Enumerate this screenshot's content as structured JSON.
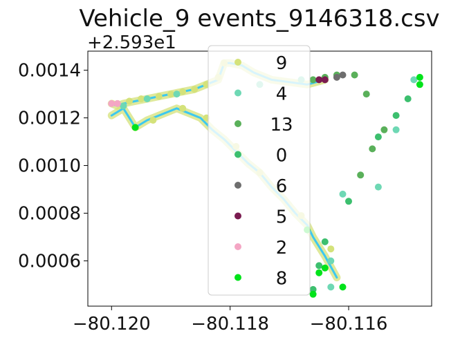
{
  "chart_data": {
    "type": "scatter",
    "title": "Vehicle_9 events_9146318.csv",
    "xlabel": "",
    "ylabel": "",
    "y_offset_label": "+2.593e1",
    "y_offset": 25.93,
    "xlim": [
      -80.1204,
      -80.1146
    ],
    "ylim": [
      0.00041,
      0.00148
    ],
    "x_ticks": [
      -80.12,
      -80.118,
      -80.116
    ],
    "x_tick_labels": [
      "−80.120",
      "−80.118",
      "−80.116"
    ],
    "y_ticks": [
      0.0006,
      0.0008,
      0.001,
      0.0012,
      0.0014
    ],
    "y_tick_labels": [
      "0.0006",
      "0.0008",
      "0.0010",
      "0.0012",
      "0.0014"
    ],
    "grid": false,
    "legend_position": "upper center",
    "route_color": "#3cc8f0",
    "series": [
      {
        "name": "9",
        "color": "#d4e27a",
        "x": [
          -80.1199,
          -80.1197,
          -80.1195,
          -80.1192,
          -80.119,
          -80.1188,
          -80.1186,
          -80.1184,
          -80.1182,
          -80.1181,
          -80.1196,
          -80.1193,
          -80.1188,
          -80.1184,
          -80.1179,
          -80.1175,
          -80.1168,
          -80.1163
        ],
        "y": [
          0.00126,
          0.00127,
          0.00128,
          0.00129,
          0.0013,
          0.00131,
          0.00132,
          0.00134,
          0.00137,
          0.00143,
          0.00116,
          0.00119,
          0.00124,
          0.0012,
          0.00108,
          0.00097,
          0.00079,
          0.00065
        ]
      },
      {
        "name": "4",
        "color": "#6ed8b4",
        "x": [
          -80.1198,
          -80.1194,
          -80.1189,
          -80.1175,
          -80.1168,
          -80.1163,
          -80.1155,
          -80.1152,
          -80.1149,
          -80.1163,
          -80.1161
        ],
        "y": [
          0.00125,
          0.00128,
          0.0013,
          0.00134,
          0.00136,
          0.0006,
          0.00091,
          0.00115,
          0.00136,
          0.00049,
          0.00088
        ]
      },
      {
        "name": "13",
        "color": "#5ab05a",
        "x": [
          -80.1158,
          -80.1156,
          -80.1154,
          -80.1157,
          -80.1159,
          -80.1162,
          -80.1164,
          -80.1166
        ],
        "y": [
          0.00096,
          0.00107,
          0.00115,
          0.0013,
          0.00138,
          0.00138,
          0.00137,
          0.00136
        ]
      },
      {
        "name": "0",
        "color": "#3cbf6e",
        "x": [
          -80.115,
          -80.1152,
          -80.1155,
          -80.116,
          -80.1164,
          -80.1166,
          -80.1165
        ],
        "y": [
          0.00128,
          0.00121,
          0.00112,
          0.00085,
          0.00068,
          0.00048,
          0.00058
        ]
      },
      {
        "name": "6",
        "color": "#6e6e6e",
        "x": [
          -80.1162,
          -80.1161
        ],
        "y": [
          0.00137,
          0.00138
        ]
      },
      {
        "name": "5",
        "color": "#7a1b50",
        "x": [
          -80.1165,
          -80.1164
        ],
        "y": [
          0.00136,
          0.00136
        ]
      },
      {
        "name": "2",
        "color": "#f4a6c4",
        "x": [
          -80.12,
          -80.1199
        ],
        "y": [
          0.00126,
          0.00126
        ]
      },
      {
        "name": "8",
        "color": "#00e31a",
        "x": [
          -80.1196,
          -80.1165,
          -80.1164,
          -80.1161,
          -80.1148,
          -80.1148,
          -80.1167,
          -80.1166
        ],
        "y": [
          0.00116,
          0.00055,
          0.00057,
          0.00049,
          0.00134,
          0.00137,
          0.00073,
          0.00046
        ]
      }
    ],
    "path_segments": [
      {
        "color": "#d4e27a",
        "x": [
          -80.12,
          -80.1199,
          -80.1198,
          -80.1196,
          -80.1194,
          -80.1192,
          -80.119,
          -80.1188,
          -80.1186,
          -80.1184,
          -80.1182,
          -80.1181,
          -80.118,
          -80.1178,
          -80.1176,
          -80.1173,
          -80.117,
          -80.1167,
          -80.1164
        ],
        "y": [
          0.00126,
          0.00125,
          0.00126,
          0.00127,
          0.00128,
          0.00129,
          0.0013,
          0.00131,
          0.00132,
          0.00134,
          0.00136,
          0.00143,
          0.00143,
          0.00142,
          0.00139,
          0.00136,
          0.00135,
          0.00134,
          0.00136
        ]
      },
      {
        "color": "#d4e27a",
        "x": [
          -80.12,
          -80.1198,
          -80.1197,
          -80.1196,
          -80.1194,
          -80.1192,
          -80.1189,
          -80.1187,
          -80.1185,
          -80.1183,
          -80.1181,
          -80.1179,
          -80.1177,
          -80.1175,
          -80.1173,
          -80.1171,
          -80.1169,
          -80.1167,
          -80.1166,
          -80.1164,
          -80.1162
        ],
        "y": [
          0.00121,
          0.00124,
          0.0012,
          0.00116,
          0.00119,
          0.00121,
          0.00124,
          0.00122,
          0.0012,
          0.00115,
          0.00111,
          0.00106,
          0.00101,
          0.00097,
          0.00091,
          0.00086,
          0.0008,
          0.00075,
          0.0007,
          0.00062,
          0.00053
        ]
      }
    ]
  }
}
